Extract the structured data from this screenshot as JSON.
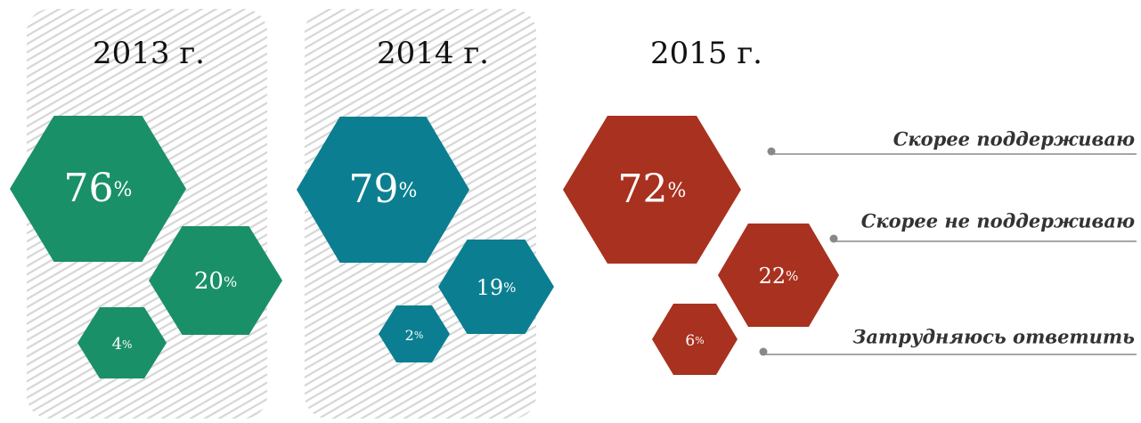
{
  "panels": [
    {
      "year": "2013 г.",
      "color": "#1a9068",
      "values": [
        76,
        20,
        4
      ]
    },
    {
      "year": "2014 г.",
      "color": "#0b7f91",
      "values": [
        79,
        19,
        2
      ]
    },
    {
      "year": "2015 г.",
      "color": "#a9311f",
      "values": [
        72,
        22,
        6
      ]
    }
  ],
  "unit": "%",
  "legend": [
    "Скорее поддерживаю",
    "Скорее не поддерживаю",
    "Затрудняюсь ответить"
  ]
}
